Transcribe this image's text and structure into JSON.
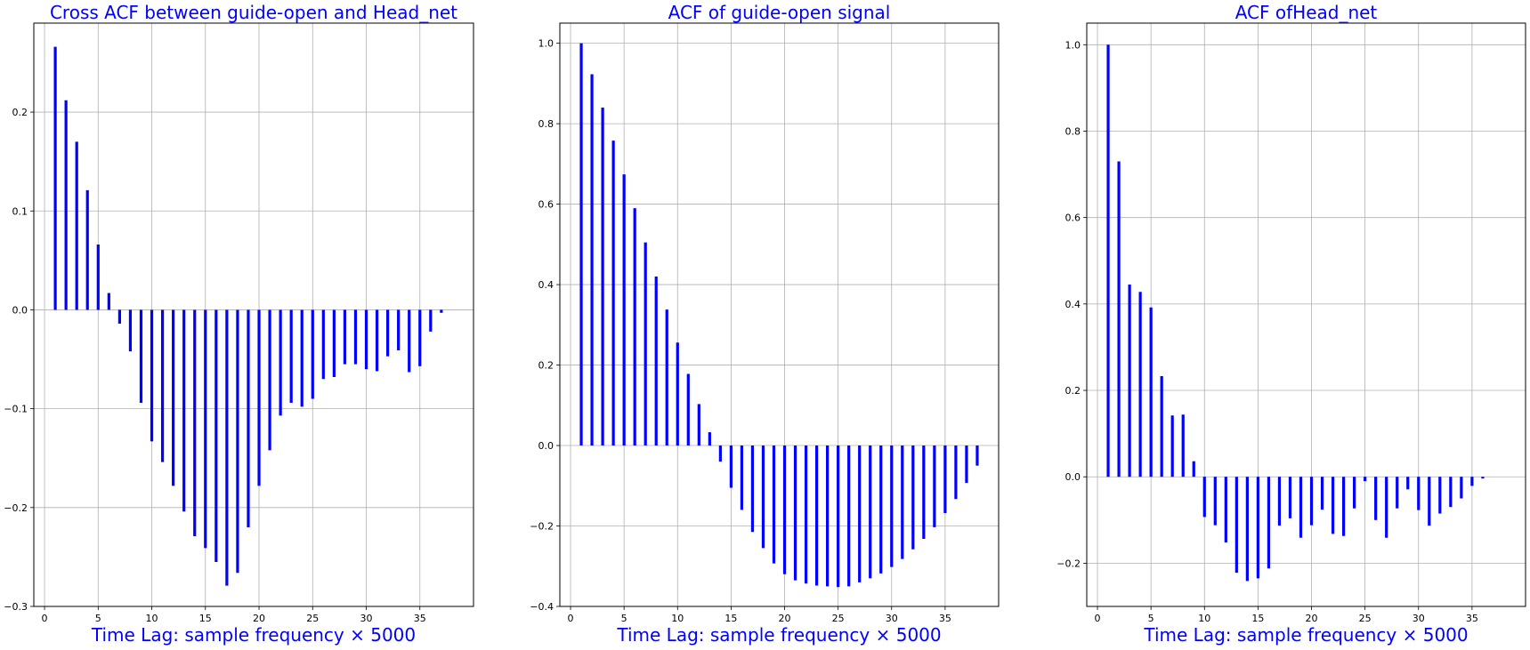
{
  "chart_data": [
    {
      "type": "bar",
      "title": "Cross ACF between guide-open and Head_net",
      "xlabel": "Time Lag: sample frequency × 5000",
      "ylabel": "",
      "xlim": [
        -1,
        40
      ],
      "ylim": [
        -0.3,
        0.29
      ],
      "xticks": [
        0,
        5,
        10,
        15,
        20,
        25,
        30,
        35
      ],
      "yticks": [
        -0.3,
        -0.2,
        -0.1,
        0.0,
        0.1,
        0.2
      ],
      "ytick_labels": [
        "−0.3",
        "−0.2",
        "−0.1",
        "0.0",
        "0.1",
        "0.2"
      ],
      "grid": true,
      "color": "#0000ff",
      "x": [
        1,
        2,
        3,
        4,
        5,
        6,
        7,
        8,
        9,
        10,
        11,
        12,
        13,
        14,
        15,
        16,
        17,
        18,
        19,
        20,
        21,
        22,
        23,
        24,
        25,
        26,
        27,
        28,
        29,
        30,
        31,
        32,
        33,
        34,
        35,
        36,
        37
      ],
      "values": [
        0.266,
        0.212,
        0.17,
        0.121,
        0.066,
        0.017,
        -0.014,
        -0.042,
        -0.094,
        -0.133,
        -0.154,
        -0.178,
        -0.204,
        -0.229,
        -0.241,
        -0.255,
        -0.279,
        -0.266,
        -0.22,
        -0.178,
        -0.142,
        -0.107,
        -0.094,
        -0.098,
        -0.09,
        -0.07,
        -0.068,
        -0.055,
        -0.055,
        -0.06,
        -0.062,
        -0.047,
        -0.041,
        -0.063,
        -0.057,
        -0.022,
        -0.003
      ]
    },
    {
      "type": "bar",
      "title": "ACF of guide-open signal",
      "xlabel": "Time Lag: sample frequency × 5000",
      "ylabel": "",
      "xlim": [
        -1,
        40
      ],
      "ylim": [
        -0.4,
        1.05
      ],
      "xticks": [
        0,
        5,
        10,
        15,
        20,
        25,
        30,
        35
      ],
      "yticks": [
        -0.4,
        -0.2,
        0.0,
        0.2,
        0.4,
        0.6,
        0.8,
        1.0
      ],
      "ytick_labels": [
        "−0.4",
        "−0.2",
        "0.0",
        "0.2",
        "0.4",
        "0.6",
        "0.8",
        "1.0"
      ],
      "grid": true,
      "color": "#0000ff",
      "x": [
        1,
        2,
        3,
        4,
        5,
        6,
        7,
        8,
        9,
        10,
        11,
        12,
        13,
        14,
        15,
        16,
        17,
        18,
        19,
        20,
        21,
        22,
        23,
        24,
        25,
        26,
        27,
        28,
        29,
        30,
        31,
        32,
        33,
        34,
        35,
        36,
        37,
        38
      ],
      "values": [
        1.0,
        0.923,
        0.84,
        0.758,
        0.674,
        0.59,
        0.505,
        0.42,
        0.338,
        0.256,
        0.178,
        0.103,
        0.033,
        -0.04,
        -0.105,
        -0.16,
        -0.215,
        -0.255,
        -0.293,
        -0.32,
        -0.335,
        -0.343,
        -0.348,
        -0.35,
        -0.352,
        -0.35,
        -0.34,
        -0.33,
        -0.318,
        -0.302,
        -0.282,
        -0.258,
        -0.232,
        -0.203,
        -0.168,
        -0.133,
        -0.093,
        -0.05
      ]
    },
    {
      "type": "bar",
      "title": "ACF ofHead_net",
      "xlabel": "Time Lag: sample frequency × 5000",
      "ylabel": "",
      "xlim": [
        -1,
        40
      ],
      "ylim": [
        -0.3,
        1.05
      ],
      "xticks": [
        0,
        5,
        10,
        15,
        20,
        25,
        30,
        35
      ],
      "yticks": [
        -0.2,
        0.0,
        0.2,
        0.4,
        0.6,
        0.8,
        1.0
      ],
      "ytick_labels": [
        "−0.2",
        "0.0",
        "0.2",
        "0.4",
        "0.6",
        "0.8",
        "1.0"
      ],
      "grid": true,
      "color": "#0000ff",
      "x": [
        1,
        2,
        3,
        4,
        5,
        6,
        7,
        8,
        9,
        10,
        11,
        12,
        13,
        14,
        15,
        16,
        17,
        18,
        19,
        20,
        21,
        22,
        23,
        24,
        25,
        26,
        27,
        28,
        29,
        30,
        31,
        32,
        33,
        34,
        35,
        36,
        37
      ],
      "values": [
        1.0,
        0.73,
        0.445,
        0.428,
        0.392,
        0.233,
        0.142,
        0.144,
        0.036,
        -0.093,
        -0.112,
        -0.152,
        -0.222,
        -0.241,
        -0.235,
        -0.212,
        -0.113,
        -0.096,
        -0.141,
        -0.112,
        -0.076,
        -0.132,
        -0.137,
        -0.073,
        -0.01,
        -0.1,
        -0.141,
        -0.073,
        -0.029,
        -0.077,
        -0.113,
        -0.085,
        -0.07,
        -0.05,
        -0.021,
        -0.004,
        0.0
      ]
    }
  ]
}
